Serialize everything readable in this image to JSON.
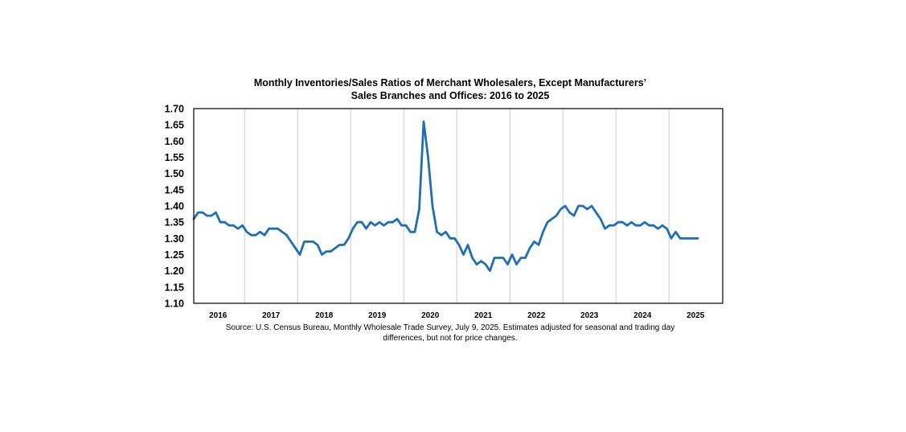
{
  "chart_data": {
    "type": "line",
    "title_lines": [
      "Monthly Inventories/Sales Ratios of Merchant Wholesalers, Except Manufacturers’",
      "Sales Branches and Offices: 2016 to 2025"
    ],
    "xlabel": "",
    "ylabel": "",
    "ylim": [
      1.1,
      1.7
    ],
    "y_ticks": [
      "1.70",
      "1.65",
      "1.60",
      "1.55",
      "1.50",
      "1.45",
      "1.40",
      "1.35",
      "1.30",
      "1.25",
      "1.20",
      "1.15",
      "1.10"
    ],
    "x_tick_labels": [
      "2016",
      "2017",
      "2018",
      "2019",
      "2020",
      "2021",
      "2022",
      "2023",
      "2024",
      "2025"
    ],
    "grid": "vertical year separators",
    "legend": "none",
    "line_color": "#1f6fb4",
    "start": "2016-01",
    "end": "2025-05",
    "series": [
      {
        "values": [
          1.36,
          1.38,
          1.38,
          1.37,
          1.37,
          1.38,
          1.35,
          1.35,
          1.34,
          1.34,
          1.33,
          1.34,
          1.32,
          1.31,
          1.31,
          1.32,
          1.31,
          1.33,
          1.33,
          1.33,
          1.32,
          1.31,
          1.29,
          1.27,
          1.25,
          1.29,
          1.29,
          1.29,
          1.28,
          1.25,
          1.26,
          1.26,
          1.27,
          1.28,
          1.28,
          1.3,
          1.33,
          1.35,
          1.35,
          1.33,
          1.35,
          1.34,
          1.35,
          1.34,
          1.35,
          1.35,
          1.36,
          1.34,
          1.34,
          1.32,
          1.32,
          1.39,
          1.66,
          1.55,
          1.4,
          1.32,
          1.31,
          1.32,
          1.3,
          1.3,
          1.28,
          1.25,
          1.28,
          1.24,
          1.22,
          1.23,
          1.22,
          1.2,
          1.24,
          1.24,
          1.24,
          1.22,
          1.25,
          1.22,
          1.24,
          1.24,
          1.27,
          1.29,
          1.28,
          1.32,
          1.35,
          1.36,
          1.37,
          1.39,
          1.4,
          1.38,
          1.37,
          1.4,
          1.4,
          1.39,
          1.4,
          1.38,
          1.36,
          1.33,
          1.34,
          1.34,
          1.35,
          1.35,
          1.34,
          1.35,
          1.34,
          1.34,
          1.35,
          1.34,
          1.34,
          1.33,
          1.34,
          1.33,
          1.3,
          1.32,
          1.3,
          1.3,
          1.3,
          1.3,
          1.3
        ]
      }
    ]
  },
  "source_lines": [
    "Source: U.S. Census Bureau, Monthly Wholesale Trade Survey, July 9, 2025. Estimates adjusted for seasonal and trading day",
    "differences, but not for price changes."
  ]
}
